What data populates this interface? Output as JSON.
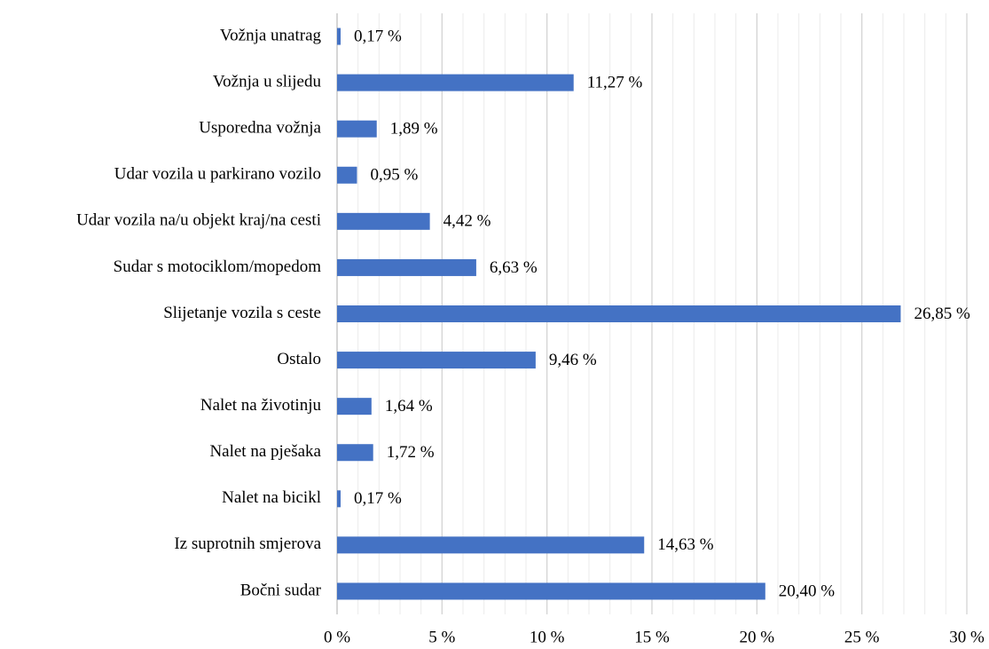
{
  "chart_data": {
    "type": "barh",
    "categories": [
      "Vožnja unatrag",
      "Vožnja u slijedu",
      "Usporedna vožnja",
      "Udar vozila u parkirano vozilo",
      "Udar vozila na/u objekt kraj/na cesti",
      "Sudar s motociklom/mopedom",
      "Slijetanje vozila s ceste",
      "Ostalo",
      "Nalet na životinju",
      "Nalet na pješaka",
      "Nalet na bicikl",
      "Iz suprotnih smjerova",
      "Bočni sudar"
    ],
    "values": [
      0.17,
      11.27,
      1.89,
      0.95,
      4.42,
      6.63,
      26.85,
      9.46,
      1.64,
      1.72,
      0.17,
      14.63,
      20.4
    ],
    "value_labels": [
      "0,17 %",
      "11,27 %",
      "1,89 %",
      "0,95 %",
      "4,42 %",
      "6,63 %",
      "26,85 %",
      "9,46 %",
      "1,64 %",
      "1,72 %",
      "0,17 %",
      "14,63 %",
      "20,40 %"
    ],
    "color": "#4472c4",
    "xlim": [
      0,
      30
    ],
    "xticks": [
      {
        "value": 0,
        "label": "0 %"
      },
      {
        "value": 5,
        "label": "5 %"
      },
      {
        "value": 10,
        "label": "10 %"
      },
      {
        "value": 15,
        "label": "15 %"
      },
      {
        "value": 20,
        "label": "20 %"
      },
      {
        "value": 25,
        "label": "25 %"
      },
      {
        "value": 30,
        "label": "30 %"
      }
    ],
    "minor_xticks": [
      1,
      2,
      3,
      4,
      6,
      7,
      8,
      9,
      11,
      12,
      13,
      14,
      16,
      17,
      18,
      19,
      21,
      22,
      23,
      24,
      26,
      27,
      28,
      29
    ],
    "grid": true
  }
}
